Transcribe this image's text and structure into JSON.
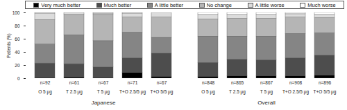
{
  "chart_data": {
    "type": "bar",
    "stacked": true,
    "y_label": "Patients (%)",
    "ylim": [
      0,
      100
    ],
    "yticks": [
      0,
      20,
      40,
      60,
      80,
      100
    ],
    "categories": [
      "O 5 μg",
      "T 2.5 μg",
      "T 5 μg",
      "T+O 2.5/5 μg",
      "T+O 5/5 μg"
    ],
    "groups": [
      "Japanese",
      "Overall"
    ],
    "n_labels": [
      [
        "n=92",
        "n=61",
        "n=67",
        "n=71",
        "n=67"
      ],
      [
        "n=848",
        "n=865",
        "n=867",
        "n=908",
        "n=896"
      ]
    ],
    "legend": "top",
    "series": [
      {
        "name": "Very much better",
        "color": "#000000",
        "values": [
          [
            1,
            2,
            1,
            9,
            3
          ],
          [
            3,
            4,
            4,
            4,
            5
          ]
        ]
      },
      {
        "name": "Much better",
        "color": "#4d4d4d",
        "values": [
          [
            22,
            20,
            16,
            22,
            35
          ],
          [
            21,
            25,
            24,
            27,
            30
          ]
        ]
      },
      {
        "name": "A little better",
        "color": "#858585",
        "values": [
          [
            29,
            44,
            40,
            39,
            24
          ],
          [
            40,
            35,
            36,
            37,
            34
          ]
        ]
      },
      {
        "name": "No change",
        "color": "#b5b5b5",
        "values": [
          [
            37,
            31,
            40,
            23,
            31
          ],
          [
            26,
            27,
            27,
            25,
            23
          ]
        ]
      },
      {
        "name": "A little worse",
        "color": "#dcdcdc",
        "values": [
          [
            10,
            3,
            2,
            6,
            7
          ],
          [
            7,
            6,
            6,
            5,
            5
          ]
        ]
      },
      {
        "name": "Much worse",
        "color": "#ffffff",
        "values": [
          [
            1,
            0,
            1,
            1,
            0
          ],
          [
            3,
            3,
            3,
            2,
            3
          ]
        ]
      }
    ]
  }
}
